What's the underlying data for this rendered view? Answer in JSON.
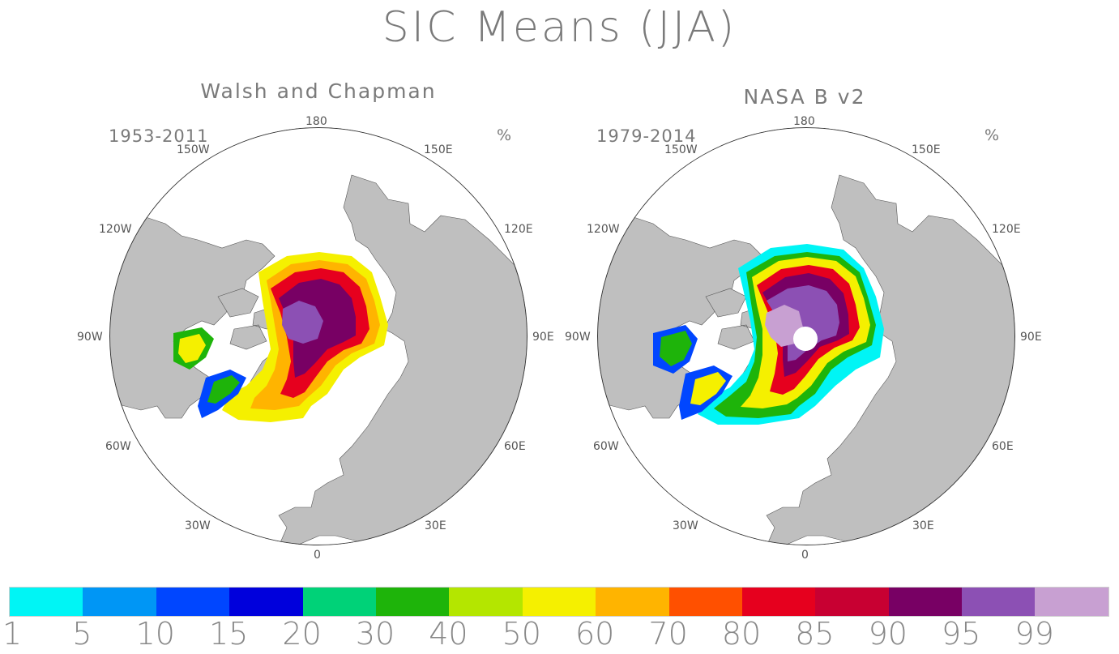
{
  "title": "SIC Means (JJA)",
  "panels": [
    {
      "title": "Walsh and Chapman",
      "period": "1953-2011",
      "unit": "%",
      "lon_labels": {
        "n180": "180",
        "w150": "150W",
        "e150": "150E",
        "w120": "120W",
        "e120": "120E",
        "w90": "90W",
        "e90": "90E",
        "w60": "60W",
        "e60": "60E",
        "w30": "30W",
        "e30": "30E",
        "zero": "0"
      }
    },
    {
      "title": "NASA B v2",
      "period": "1979-2014",
      "unit": "%",
      "lon_labels": {
        "n180": "180",
        "w150": "150W",
        "e150": "150E",
        "w120": "120W",
        "e120": "120E",
        "w90": "90W",
        "e90": "90E",
        "w60": "60W",
        "e60": "60E",
        "w30": "30W",
        "e30": "30E",
        "zero": "0"
      }
    }
  ],
  "colorbar": {
    "labels": [
      "1",
      "5",
      "10",
      "15",
      "20",
      "30",
      "40",
      "50",
      "60",
      "70",
      "80",
      "85",
      "90",
      "95",
      "99"
    ],
    "colors": [
      "#00f5f5",
      "#0096f5",
      "#0046ff",
      "#0000dc",
      "#00d278",
      "#1eb40a",
      "#b4e600",
      "#f5f000",
      "#ffb400",
      "#ff5000",
      "#e6001e",
      "#c80032",
      "#780064",
      "#8c50b4",
      "#c8a0d2"
    ]
  },
  "colors": {
    "land": "#bfbfbf",
    "ocean": "#ffffff",
    "outline": "#444444"
  }
}
